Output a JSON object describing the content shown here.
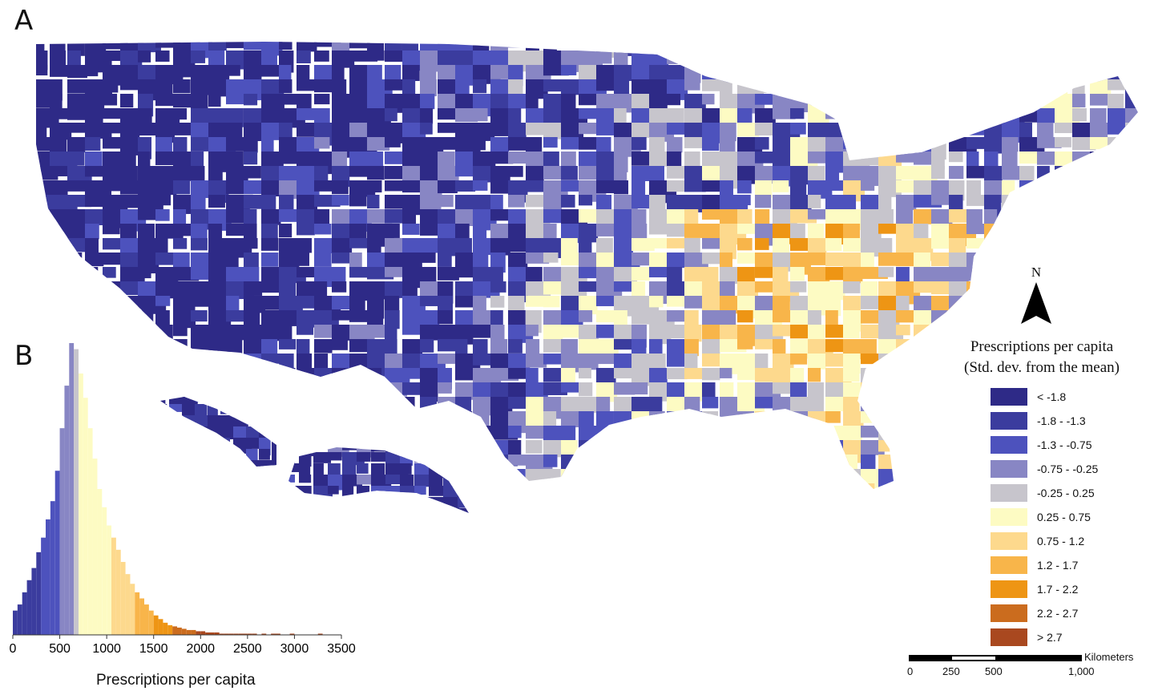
{
  "panels": {
    "a_label": "A",
    "b_label": "B"
  },
  "legend": {
    "title_line1": "Prescriptions per capita",
    "title_line2": "(Std. dev. from the mean)",
    "classes": [
      {
        "label": "< -1.8",
        "color": "#2e2a87"
      },
      {
        "label": "-1.8 - -1.3",
        "color": "#3b3c9e"
      },
      {
        "label": "-1.3 - -0.75",
        "color": "#4d52bd"
      },
      {
        "label": "-0.75 - -0.25",
        "color": "#8886c4"
      },
      {
        "label": "-0.25 - 0.25",
        "color": "#c7c5cc"
      },
      {
        "label": "0.25 - 0.75",
        "color": "#fdfbc3"
      },
      {
        "label": "0.75 - 1.2",
        "color": "#fdd98d"
      },
      {
        "label": "1.2 - 1.7",
        "color": "#f8b54a"
      },
      {
        "label": "1.7 - 2.2",
        "color": "#ee9514"
      },
      {
        "label": "2.2 - 2.7",
        "color": "#cb6c1e"
      },
      {
        "label": "> 2.7",
        "color": "#a9481f"
      }
    ]
  },
  "north_arrow": {
    "label": "N"
  },
  "scale_bar": {
    "units": "Kilometers",
    "ticks": [
      "0",
      "250",
      "500",
      "1,000"
    ]
  },
  "chart_data": {
    "type": "bar",
    "title": "",
    "xlabel": "Prescriptions per capita",
    "ylabel": "",
    "xlim": [
      0,
      3500
    ],
    "xticks": [
      "0",
      "500",
      "1000",
      "1500",
      "2000",
      "2500",
      "3000",
      "3500"
    ],
    "bin_width": 50,
    "bin_starts": [
      0,
      50,
      100,
      150,
      200,
      250,
      300,
      350,
      400,
      450,
      500,
      550,
      600,
      650,
      700,
      750,
      800,
      850,
      900,
      950,
      1000,
      1050,
      1100,
      1150,
      1200,
      1250,
      1300,
      1350,
      1400,
      1450,
      1500,
      1550,
      1600,
      1650,
      1700,
      1750,
      1800,
      1850,
      1900,
      1950,
      2000,
      2050,
      2100,
      2150,
      2200,
      2250,
      2300,
      2350,
      2400,
      2450,
      2500,
      2550,
      2600,
      2650,
      2700,
      2750,
      2800,
      2850,
      2900,
      2950,
      3000,
      3050,
      3100,
      3150,
      3200,
      3250
    ],
    "counts": [
      20,
      25,
      35,
      45,
      55,
      68,
      80,
      95,
      110,
      135,
      170,
      205,
      240,
      235,
      215,
      195,
      170,
      145,
      120,
      105,
      90,
      80,
      70,
      60,
      50,
      42,
      35,
      30,
      25,
      20,
      16,
      13,
      10,
      8,
      7,
      6,
      5,
      4,
      4,
      3,
      3,
      2,
      2,
      2,
      1,
      1,
      1,
      1,
      1,
      1,
      1,
      1,
      0,
      1,
      0,
      1,
      1,
      0,
      0,
      1,
      0,
      0,
      0,
      0,
      0,
      1
    ],
    "bin_colors": [
      "#3b3c9e",
      "#3b3c9e",
      "#3b3c9e",
      "#3b3c9e",
      "#3b3c9e",
      "#3b3c9e",
      "#4d52bd",
      "#4d52bd",
      "#4d52bd",
      "#4d52bd",
      "#8886c4",
      "#8886c4",
      "#8886c4",
      "#c7c5cc",
      "#fdfbc3",
      "#fdfbc3",
      "#fdfbc3",
      "#fdfbc3",
      "#fdfbc3",
      "#fdfbc3",
      "#fdfbc3",
      "#fdd98d",
      "#fdd98d",
      "#fdd98d",
      "#fdd98d",
      "#fdd98d",
      "#f8b54a",
      "#f8b54a",
      "#f8b54a",
      "#f8b54a",
      "#ee9514",
      "#ee9514",
      "#ee9514",
      "#ee9514",
      "#cb6c1e",
      "#cb6c1e",
      "#cb6c1e",
      "#cb6c1e",
      "#cb6c1e",
      "#a9481f",
      "#a9481f",
      "#a9481f",
      "#a9481f",
      "#a9481f",
      "#a9481f",
      "#a9481f",
      "#a9481f",
      "#a9481f",
      "#a9481f",
      "#a9481f",
      "#a9481f",
      "#a9481f",
      "#a9481f",
      "#a9481f",
      "#a9481f",
      "#a9481f",
      "#a9481f",
      "#a9481f",
      "#a9481f",
      "#a9481f",
      "#a9481f",
      "#a9481f",
      "#a9481f",
      "#a9481f",
      "#a9481f",
      "#a9481f"
    ]
  }
}
